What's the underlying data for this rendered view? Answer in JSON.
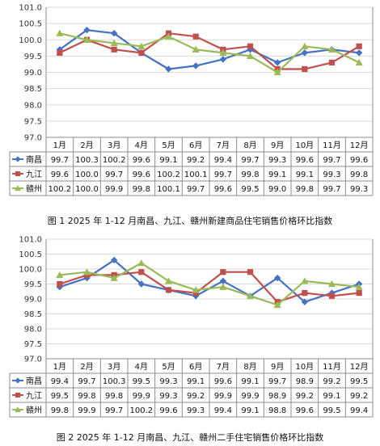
{
  "colors": {
    "nanchang": "#4472C4",
    "jiujiang": "#C0504D",
    "ganzhou": "#9BBB59",
    "grid": "#d9d9d9",
    "border": "#8c8c8c"
  },
  "chart_data": [
    {
      "type": "line",
      "title": "图 1   2025 年 1-12 月南昌、九江、赣州新建商品住宅销售价格环比指数",
      "categories": [
        "1月",
        "2月",
        "3月",
        "4月",
        "5月",
        "6月",
        "7月",
        "8月",
        "9月",
        "10月",
        "11月",
        "12月"
      ],
      "yticks": [
        "101.0",
        "100.5",
        "100.0",
        "99.5",
        "99.0",
        "98.5",
        "98.0",
        "97.5",
        "97.0"
      ],
      "ylim": [
        97.0,
        101.0
      ],
      "grid": true,
      "legend": "data-table",
      "series": [
        {
          "name": "南昌",
          "color": "#4472C4",
          "marker": "diamond",
          "values": [
            99.7,
            100.3,
            100.2,
            99.6,
            99.1,
            99.2,
            99.4,
            99.7,
            99.3,
            99.6,
            99.7,
            99.6
          ],
          "labels": [
            "99.7",
            "100.3",
            "100.2",
            "99.6",
            "99.1",
            "99.2",
            "99.4",
            "99.7",
            "99.3",
            "99.6",
            "99.7",
            "99.6"
          ]
        },
        {
          "name": "九江",
          "color": "#C0504D",
          "marker": "square",
          "values": [
            99.6,
            100.0,
            99.7,
            99.6,
            100.2,
            100.1,
            99.7,
            99.8,
            99.1,
            99.1,
            99.3,
            99.8
          ],
          "labels": [
            "99.6",
            "100.0",
            "99.7",
            "99.6",
            "100.2",
            "100.1",
            "99.7",
            "99.8",
            "99.1",
            "99.1",
            "99.3",
            "99.8"
          ]
        },
        {
          "name": "赣州",
          "color": "#9BBB59",
          "marker": "triangle",
          "values": [
            100.2,
            100.0,
            99.9,
            99.8,
            100.1,
            99.7,
            99.6,
            99.5,
            99.0,
            99.8,
            99.7,
            99.3
          ],
          "labels": [
            "100.2",
            "100.0",
            "99.9",
            "99.8",
            "100.1",
            "99.7",
            "99.6",
            "99.5",
            "99.0",
            "99.8",
            "99.7",
            "99.3"
          ]
        }
      ]
    },
    {
      "type": "line",
      "title": "图 2   2025 年 1-12 月南昌、九江、赣州二手住宅销售价格环比指数",
      "categories": [
        "1月",
        "2月",
        "3月",
        "4月",
        "5月",
        "6月",
        "7月",
        "8月",
        "9月",
        "10月",
        "11月",
        "12月"
      ],
      "yticks": [
        "101.0",
        "100.5",
        "100.0",
        "99.5",
        "99.0",
        "98.5",
        "98.0",
        "97.5",
        "97.0"
      ],
      "ylim": [
        97.0,
        101.0
      ],
      "grid": true,
      "legend": "data-table",
      "series": [
        {
          "name": "南昌",
          "color": "#4472C4",
          "marker": "diamond",
          "values": [
            99.4,
            99.7,
            100.3,
            99.5,
            99.3,
            99.1,
            99.6,
            99.1,
            99.7,
            98.9,
            99.2,
            99.5
          ],
          "labels": [
            "99.4",
            "99.7",
            "100.3",
            "99.5",
            "99.3",
            "99.1",
            "99.6",
            "99.1",
            "99.7",
            "98.9",
            "99.2",
            "99.5"
          ]
        },
        {
          "name": "九江",
          "color": "#C0504D",
          "marker": "square",
          "values": [
            99.5,
            99.8,
            99.8,
            99.9,
            99.3,
            99.2,
            99.9,
            99.9,
            98.9,
            99.2,
            99.1,
            99.2
          ],
          "labels": [
            "99.5",
            "99.8",
            "99.8",
            "99.9",
            "99.3",
            "99.2",
            "99.9",
            "99.9",
            "98.9",
            "99.2",
            "99.1",
            "99.2"
          ]
        },
        {
          "name": "赣州",
          "color": "#9BBB59",
          "marker": "triangle",
          "values": [
            99.8,
            99.9,
            99.7,
            100.2,
            99.6,
            99.3,
            99.4,
            99.1,
            98.8,
            99.6,
            99.5,
            99.4
          ],
          "labels": [
            "99.8",
            "99.9",
            "99.7",
            "100.2",
            "99.6",
            "99.3",
            "99.4",
            "99.1",
            "98.8",
            "99.6",
            "99.5",
            "99.4"
          ]
        }
      ]
    }
  ]
}
